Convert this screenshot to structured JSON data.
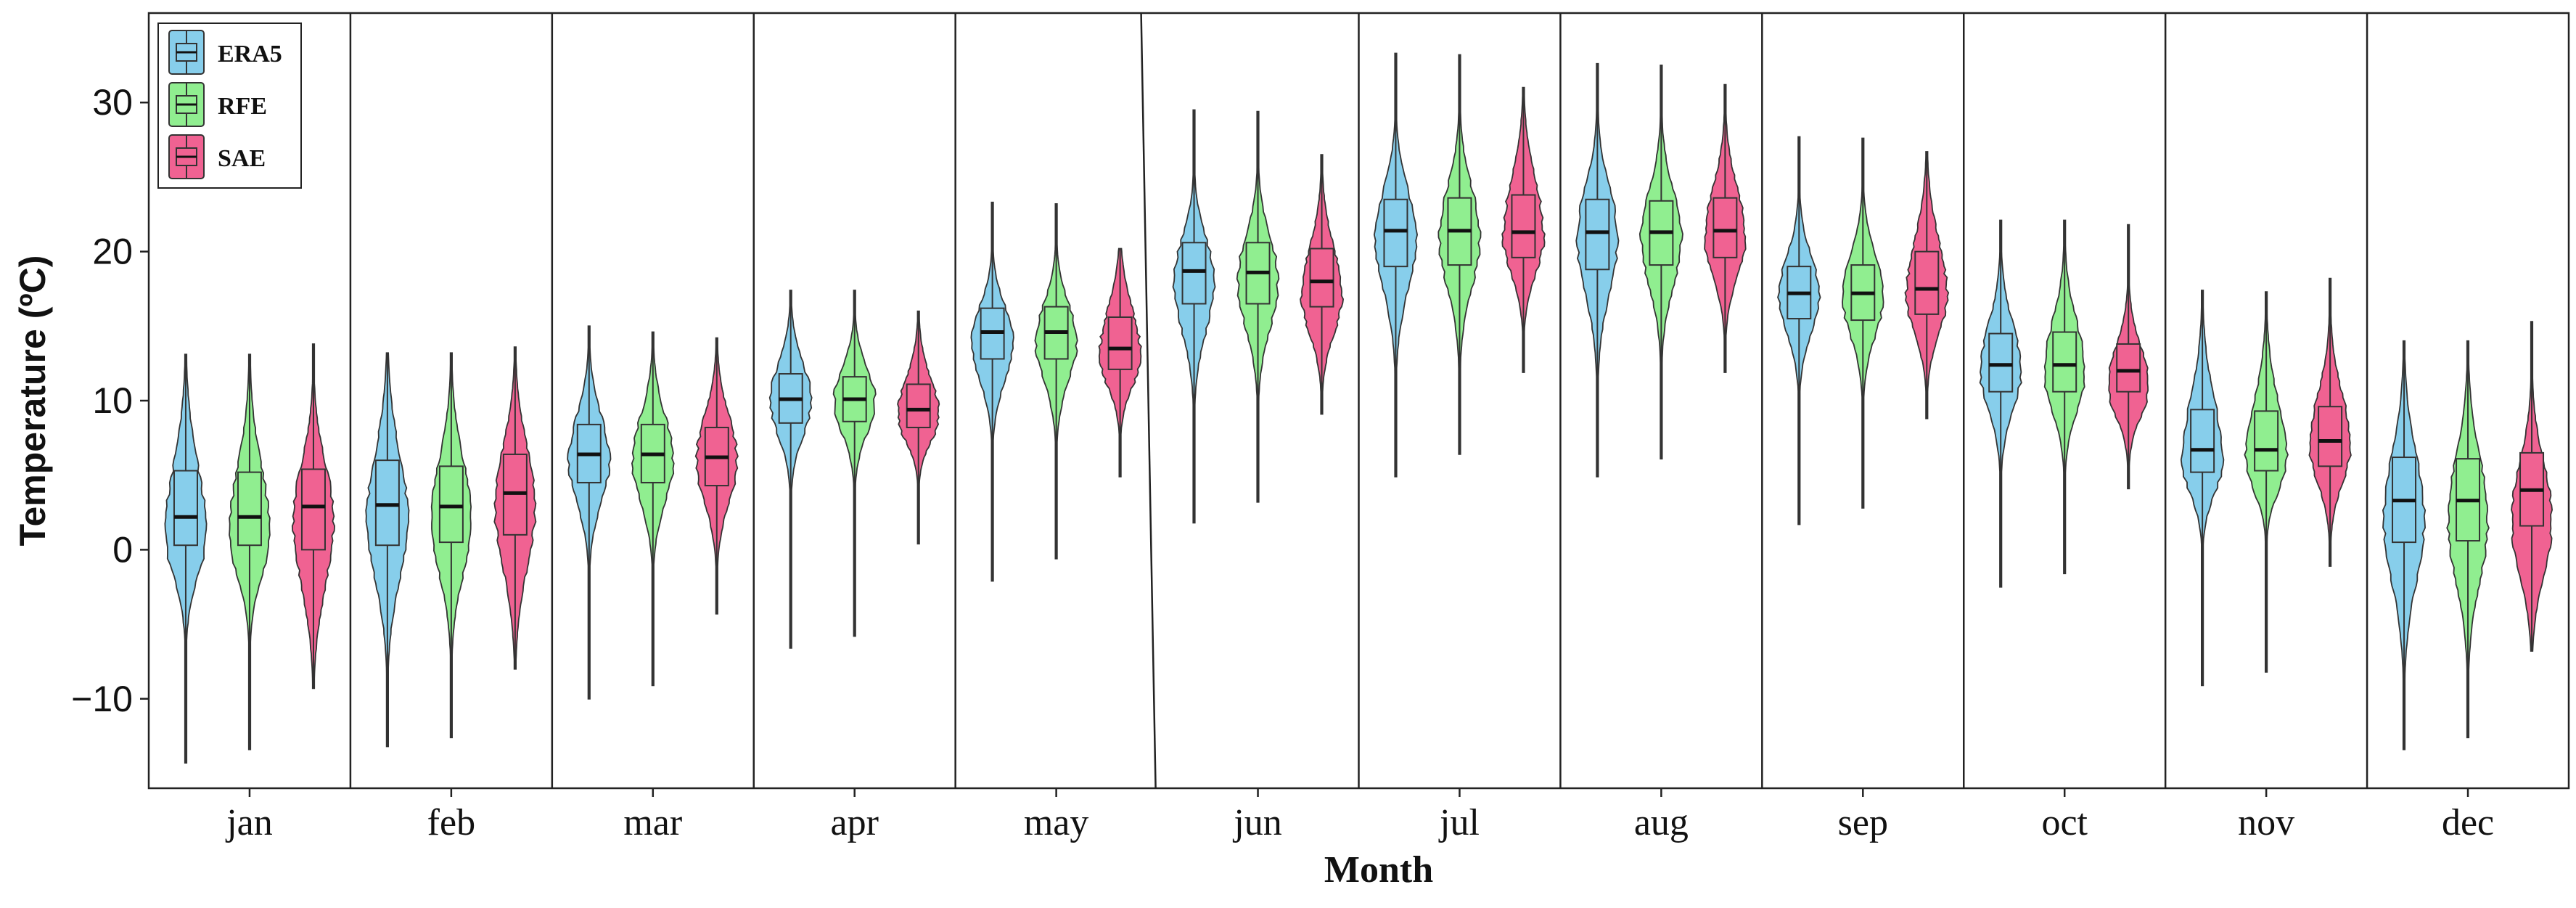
{
  "chart_data": {
    "type": "violin",
    "title": "",
    "xlabel": "Month",
    "ylabel": "Temperature (ºC)",
    "ylim": [
      -16,
      36
    ],
    "yticks": [
      "−10",
      "0",
      "10",
      "20",
      "30"
    ],
    "categories": [
      "jan",
      "feb",
      "mar",
      "apr",
      "may",
      "jun",
      "jul",
      "aug",
      "sep",
      "oct",
      "nov",
      "dec"
    ],
    "series": [
      {
        "name": "ERA5",
        "color": "#87CEEB",
        "stats": [
          {
            "min": -14.3,
            "q1": 0.3,
            "median": 2.2,
            "q3": 5.3,
            "max": 13.1,
            "mode": 1.0
          },
          {
            "min": -13.2,
            "q1": 0.3,
            "median": 3.0,
            "q3": 6.0,
            "max": 13.2,
            "mode": 2.0
          },
          {
            "min": -10.0,
            "q1": 4.5,
            "median": 6.4,
            "q3": 8.4,
            "max": 15.0,
            "mode": 6.0
          },
          {
            "min": -6.6,
            "q1": 8.5,
            "median": 10.1,
            "q3": 11.8,
            "max": 17.4,
            "mode": 10.0
          },
          {
            "min": -2.1,
            "q1": 12.8,
            "median": 14.6,
            "q3": 16.2,
            "max": 23.3,
            "mode": 14.0
          },
          {
            "min": 1.8,
            "q1": 16.5,
            "median": 18.7,
            "q3": 20.6,
            "max": 29.5,
            "mode": 18.0
          },
          {
            "min": 4.9,
            "q1": 19.0,
            "median": 21.4,
            "q3": 23.5,
            "max": 33.3,
            "mode": 21.0
          },
          {
            "min": 4.9,
            "q1": 18.8,
            "median": 21.3,
            "q3": 23.5,
            "max": 32.6,
            "mode": 21.0
          },
          {
            "min": 1.7,
            "q1": 15.5,
            "median": 17.2,
            "q3": 19.0,
            "max": 27.7,
            "mode": 17.0
          },
          {
            "min": -2.5,
            "q1": 10.6,
            "median": 12.4,
            "q3": 14.5,
            "max": 22.1,
            "mode": 12.0
          },
          {
            "min": -9.1,
            "q1": 5.2,
            "median": 6.7,
            "q3": 9.4,
            "max": 17.4,
            "mode": 6.0
          },
          {
            "min": -13.4,
            "q1": 0.5,
            "median": 3.3,
            "q3": 6.2,
            "max": 14.0,
            "mode": 2.0
          }
        ]
      },
      {
        "name": "RFE",
        "color": "#90EE90",
        "stats": [
          {
            "min": -13.4,
            "q1": 0.3,
            "median": 2.2,
            "q3": 5.2,
            "max": 13.1,
            "mode": 1.0
          },
          {
            "min": -12.6,
            "q1": 0.5,
            "median": 2.9,
            "q3": 5.6,
            "max": 13.2,
            "mode": 2.0
          },
          {
            "min": -9.1,
            "q1": 4.5,
            "median": 6.4,
            "q3": 8.4,
            "max": 14.6,
            "mode": 6.0
          },
          {
            "min": -5.8,
            "q1": 8.6,
            "median": 10.1,
            "q3": 11.6,
            "max": 17.4,
            "mode": 10.0
          },
          {
            "min": -0.6,
            "q1": 12.8,
            "median": 14.6,
            "q3": 16.3,
            "max": 23.2,
            "mode": 14.0
          },
          {
            "min": 3.2,
            "q1": 16.5,
            "median": 18.6,
            "q3": 20.6,
            "max": 29.4,
            "mode": 18.0
          },
          {
            "min": 6.4,
            "q1": 19.1,
            "median": 21.4,
            "q3": 23.6,
            "max": 33.2,
            "mode": 21.0
          },
          {
            "min": 6.1,
            "q1": 19.1,
            "median": 21.3,
            "q3": 23.4,
            "max": 32.5,
            "mode": 21.0
          },
          {
            "min": 2.8,
            "q1": 15.4,
            "median": 17.2,
            "q3": 19.1,
            "max": 27.6,
            "mode": 17.0
          },
          {
            "min": -1.6,
            "q1": 10.6,
            "median": 12.4,
            "q3": 14.6,
            "max": 22.1,
            "mode": 12.0
          },
          {
            "min": -8.2,
            "q1": 5.3,
            "median": 6.7,
            "q3": 9.3,
            "max": 17.3,
            "mode": 6.0
          },
          {
            "min": -12.6,
            "q1": 0.6,
            "median": 3.3,
            "q3": 6.1,
            "max": 14.0,
            "mode": 2.0
          }
        ]
      },
      {
        "name": "SAE",
        "color": "#F06292",
        "stats": [
          {
            "min": -9.3,
            "q1": 0.0,
            "median": 2.9,
            "q3": 5.4,
            "max": 13.8,
            "mode": 2.0
          },
          {
            "min": -8.0,
            "q1": 1.0,
            "median": 3.8,
            "q3": 6.4,
            "max": 13.6,
            "mode": 3.0
          },
          {
            "min": -4.3,
            "q1": 4.3,
            "median": 6.2,
            "q3": 8.2,
            "max": 14.2,
            "mode": 6.0
          },
          {
            "min": 0.4,
            "q1": 8.2,
            "median": 9.4,
            "q3": 11.1,
            "max": 16.0,
            "mode": 9.0
          },
          {
            "min": 4.9,
            "q1": 12.1,
            "median": 13.5,
            "q3": 15.6,
            "max": 20.2,
            "mode": 13.0
          },
          {
            "min": 9.1,
            "q1": 16.3,
            "median": 18.0,
            "q3": 20.2,
            "max": 26.5,
            "mode": 17.0
          },
          {
            "min": 11.9,
            "q1": 19.6,
            "median": 21.3,
            "q3": 23.8,
            "max": 31.0,
            "mode": 21.0
          },
          {
            "min": 11.9,
            "q1": 19.6,
            "median": 21.4,
            "q3": 23.6,
            "max": 31.2,
            "mode": 21.0
          },
          {
            "min": 8.8,
            "q1": 15.8,
            "median": 17.5,
            "q3": 20.0,
            "max": 26.7,
            "mode": 17.0
          },
          {
            "min": 4.1,
            "q1": 10.6,
            "median": 12.0,
            "q3": 13.8,
            "max": 21.8,
            "mode": 11.0
          },
          {
            "min": -1.1,
            "q1": 5.6,
            "median": 7.3,
            "q3": 9.6,
            "max": 18.2,
            "mode": 7.0
          },
          {
            "min": -6.8,
            "q1": 1.6,
            "median": 4.0,
            "q3": 6.5,
            "max": 15.3,
            "mode": 2.0
          }
        ]
      }
    ],
    "legend": {
      "position": "top-left",
      "entries": [
        "ERA5",
        "RFE",
        "SAE"
      ]
    },
    "grid": false
  }
}
